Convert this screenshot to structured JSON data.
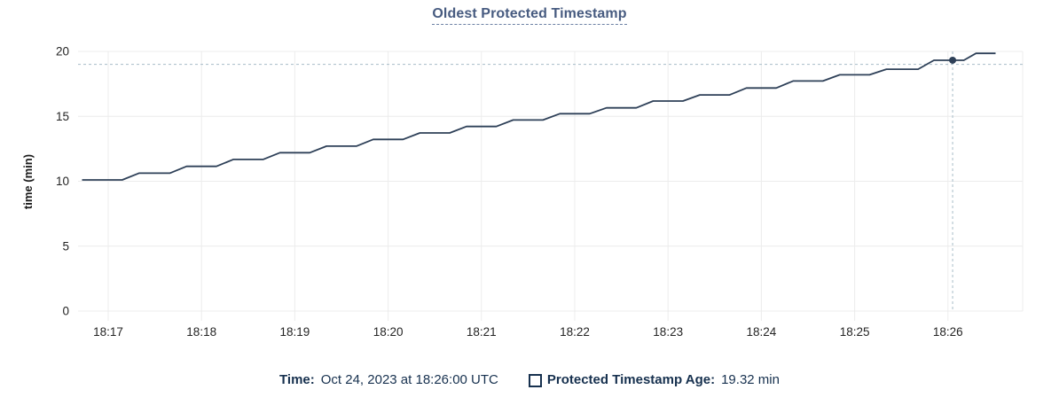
{
  "page": {
    "title": "Oldest Protected Timestamp"
  },
  "chart_data": {
    "type": "line",
    "title": "Oldest Protected Timestamp",
    "xlabel": "",
    "ylabel": "time (min)",
    "ylim": [
      0,
      20
    ],
    "y_ticks": [
      0,
      5,
      10,
      15,
      20
    ],
    "x_ticks": [
      {
        "t": 17,
        "label": "18:17"
      },
      {
        "t": 18,
        "label": "18:18"
      },
      {
        "t": 19,
        "label": "18:19"
      },
      {
        "t": 20,
        "label": "18:20"
      },
      {
        "t": 21,
        "label": "18:21"
      },
      {
        "t": 22,
        "label": "18:22"
      },
      {
        "t": 23,
        "label": "18:23"
      },
      {
        "t": 24,
        "label": "18:24"
      },
      {
        "t": 25,
        "label": "18:25"
      },
      {
        "t": 26,
        "label": "18:26"
      }
    ],
    "x_domain_minutes_after_1800": [
      16.72,
      26.8
    ],
    "grid": true,
    "legend_position": "bottom",
    "series": [
      {
        "name": "Protected Timestamp Age",
        "units": "min",
        "points": [
          [
            16.72,
            10.1
          ],
          [
            17.15,
            10.1
          ],
          [
            17.33,
            10.62
          ],
          [
            17.66,
            10.62
          ],
          [
            17.84,
            11.15
          ],
          [
            18.16,
            11.15
          ],
          [
            18.34,
            11.68
          ],
          [
            18.66,
            11.68
          ],
          [
            18.84,
            12.2
          ],
          [
            19.16,
            12.2
          ],
          [
            19.34,
            12.7
          ],
          [
            19.66,
            12.7
          ],
          [
            19.84,
            13.22
          ],
          [
            20.16,
            13.22
          ],
          [
            20.34,
            13.72
          ],
          [
            20.66,
            13.72
          ],
          [
            20.84,
            14.22
          ],
          [
            21.16,
            14.22
          ],
          [
            21.34,
            14.72
          ],
          [
            21.66,
            14.72
          ],
          [
            21.84,
            15.2
          ],
          [
            22.16,
            15.2
          ],
          [
            22.34,
            15.65
          ],
          [
            22.66,
            15.65
          ],
          [
            22.84,
            16.18
          ],
          [
            23.16,
            16.18
          ],
          [
            23.34,
            16.65
          ],
          [
            23.66,
            16.65
          ],
          [
            23.84,
            17.18
          ],
          [
            24.16,
            17.18
          ],
          [
            24.34,
            17.72
          ],
          [
            24.66,
            17.72
          ],
          [
            24.84,
            18.2
          ],
          [
            25.16,
            18.2
          ],
          [
            25.34,
            18.63
          ],
          [
            25.68,
            18.63
          ],
          [
            25.85,
            19.32
          ],
          [
            26.17,
            19.32
          ],
          [
            26.3,
            19.85
          ],
          [
            26.51,
            19.85
          ]
        ]
      }
    ],
    "hover": {
      "t": 26.05,
      "value": 19.32,
      "crosshair_value": 19.0,
      "time_label": "18:26:00"
    }
  },
  "footer": {
    "time_label": "Time:",
    "time_value": "Oct 24, 2023 at 18:26:00 UTC",
    "age_label": "Protected Timestamp Age:",
    "age_value": "19.32 min"
  },
  "colors": {
    "line": "#2e4058",
    "grid": "#ececec",
    "crosshair": "#a6bcc8",
    "title": "#475b80",
    "navy_text": "#17314f",
    "tick_text": "#242424"
  }
}
